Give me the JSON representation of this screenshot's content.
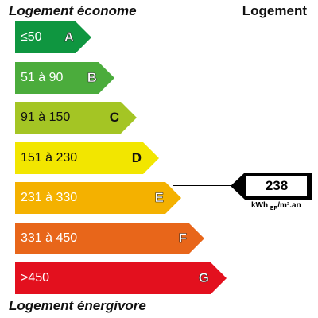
{
  "header": {
    "top_left": "Logement économe",
    "top_right": "Logement",
    "bottom_left": "Logement énergivore"
  },
  "ratings": [
    {
      "range": "≤50",
      "letter": "A",
      "color": "#0f9640"
    },
    {
      "range": "51 à 90",
      "letter": "B",
      "color": "#4bac3c"
    },
    {
      "range": "91 à 150",
      "letter": "C",
      "color": "#a4c524"
    },
    {
      "range": "151 à 230",
      "letter": "D",
      "color": "#f2e600"
    },
    {
      "range": "231 à 330",
      "letter": "E",
      "color": "#f4b100"
    },
    {
      "range": "331 à 450",
      "letter": "F",
      "color": "#e8661a"
    },
    {
      "range": ">450",
      "letter": "G",
      "color": "#e3101e"
    }
  ],
  "current": {
    "value": "238",
    "unit_prefix": "kWh ",
    "unit_sub": "EP",
    "unit_suffix": "/m².an",
    "rating": "E"
  }
}
